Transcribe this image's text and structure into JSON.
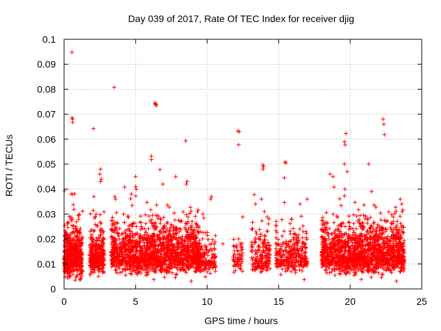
{
  "chart_data": {
    "type": "scatter",
    "title": "Day 039 of 2017, Rate Of TEC Index for receiver djig",
    "xlabel": "GPS time / hours",
    "ylabel": "ROTI / TECUs",
    "xlim": [
      0,
      25
    ],
    "ylim": [
      0,
      0.1
    ],
    "xticks": [
      0,
      5,
      10,
      15,
      20,
      25
    ],
    "xtick_labels": [
      "0",
      "5",
      "10",
      "15",
      "20",
      "25"
    ],
    "yticks": [
      0,
      0.01,
      0.02,
      0.03,
      0.04,
      0.05,
      0.06,
      0.07,
      0.08,
      0.09,
      0.1
    ],
    "ytick_labels": [
      "0",
      "0.01",
      "0.02",
      "0.03",
      "0.04",
      "0.05",
      "0.06",
      "0.07",
      "0.08",
      "0.09",
      "0.1"
    ],
    "grid": true,
    "marker": "+",
    "marker_color": "#ff0000",
    "clusters": [
      {
        "x_range": [
          0.0,
          1.3
        ],
        "y_center": 0.012,
        "y_spread": 0.006,
        "count": 520
      },
      {
        "x_range": [
          1.8,
          2.8
        ],
        "y_center": 0.012,
        "y_spread": 0.005,
        "count": 320
      },
      {
        "x_range": [
          3.3,
          9.5
        ],
        "y_center": 0.013,
        "y_spread": 0.006,
        "count": 1700
      },
      {
        "x_range": [
          9.2,
          10.6
        ],
        "y_center": 0.011,
        "y_spread": 0.004,
        "count": 180
      },
      {
        "x_range": [
          11.8,
          12.5
        ],
        "y_center": 0.011,
        "y_spread": 0.004,
        "count": 60
      },
      {
        "x_range": [
          13.1,
          14.4
        ],
        "y_center": 0.012,
        "y_spread": 0.005,
        "count": 170
      },
      {
        "x_range": [
          14.8,
          17.0
        ],
        "y_center": 0.012,
        "y_spread": 0.005,
        "count": 300
      },
      {
        "x_range": [
          18.0,
          23.8
        ],
        "y_center": 0.013,
        "y_spread": 0.006,
        "count": 1500
      }
    ],
    "outliers": [
      [
        0.55,
        0.0948
      ],
      [
        0.55,
        0.0685
      ],
      [
        0.6,
        0.068
      ],
      [
        0.6,
        0.0668
      ],
      [
        2.05,
        0.0642
      ],
      [
        3.5,
        0.0808
      ],
      [
        6.35,
        0.0745
      ],
      [
        6.4,
        0.0738
      ],
      [
        6.4,
        0.0742
      ],
      [
        6.45,
        0.0735
      ],
      [
        6.1,
        0.0532
      ],
      [
        6.1,
        0.0518
      ],
      [
        6.7,
        0.0478
      ],
      [
        8.5,
        0.0593
      ],
      [
        12.15,
        0.0632
      ],
      [
        12.25,
        0.063
      ],
      [
        12.2,
        0.0578
      ],
      [
        13.9,
        0.0497
      ],
      [
        13.95,
        0.049
      ],
      [
        13.9,
        0.048
      ],
      [
        15.45,
        0.0508
      ],
      [
        15.5,
        0.0505
      ],
      [
        15.4,
        0.0445
      ],
      [
        19.7,
        0.0623
      ],
      [
        19.6,
        0.059
      ],
      [
        19.65,
        0.0577
      ],
      [
        19.6,
        0.05
      ],
      [
        21.3,
        0.05
      ],
      [
        22.3,
        0.068
      ],
      [
        22.35,
        0.066
      ],
      [
        22.4,
        0.0618
      ],
      [
        2.55,
        0.048
      ],
      [
        2.5,
        0.046
      ],
      [
        2.6,
        0.044
      ],
      [
        2.55,
        0.043
      ],
      [
        8.6,
        0.043
      ],
      [
        8.55,
        0.042
      ],
      [
        10.3,
        0.037
      ],
      [
        10.25,
        0.036
      ],
      [
        15.9,
        0.028
      ],
      [
        16.5,
        0.034
      ],
      [
        17.0,
        0.036
      ],
      [
        5.0,
        0.045
      ],
      [
        5.0,
        0.041
      ],
      [
        6.9,
        0.042
      ],
      [
        7.8,
        0.045
      ],
      [
        18.6,
        0.046
      ],
      [
        18.8,
        0.045
      ],
      [
        19.8,
        0.047
      ],
      [
        21.5,
        0.039
      ],
      [
        23.5,
        0.036
      ],
      [
        23.6,
        0.034
      ],
      [
        4.7,
        0.038
      ],
      [
        9.7,
        0.03
      ],
      [
        0.5,
        0.038
      ],
      [
        3.55,
        0.037
      ],
      [
        3.6,
        0.036
      ],
      [
        12.2,
        0.02
      ],
      [
        13.8,
        0.036
      ],
      [
        14.0,
        0.031
      ],
      [
        11.1,
        0.018
      ]
    ]
  }
}
